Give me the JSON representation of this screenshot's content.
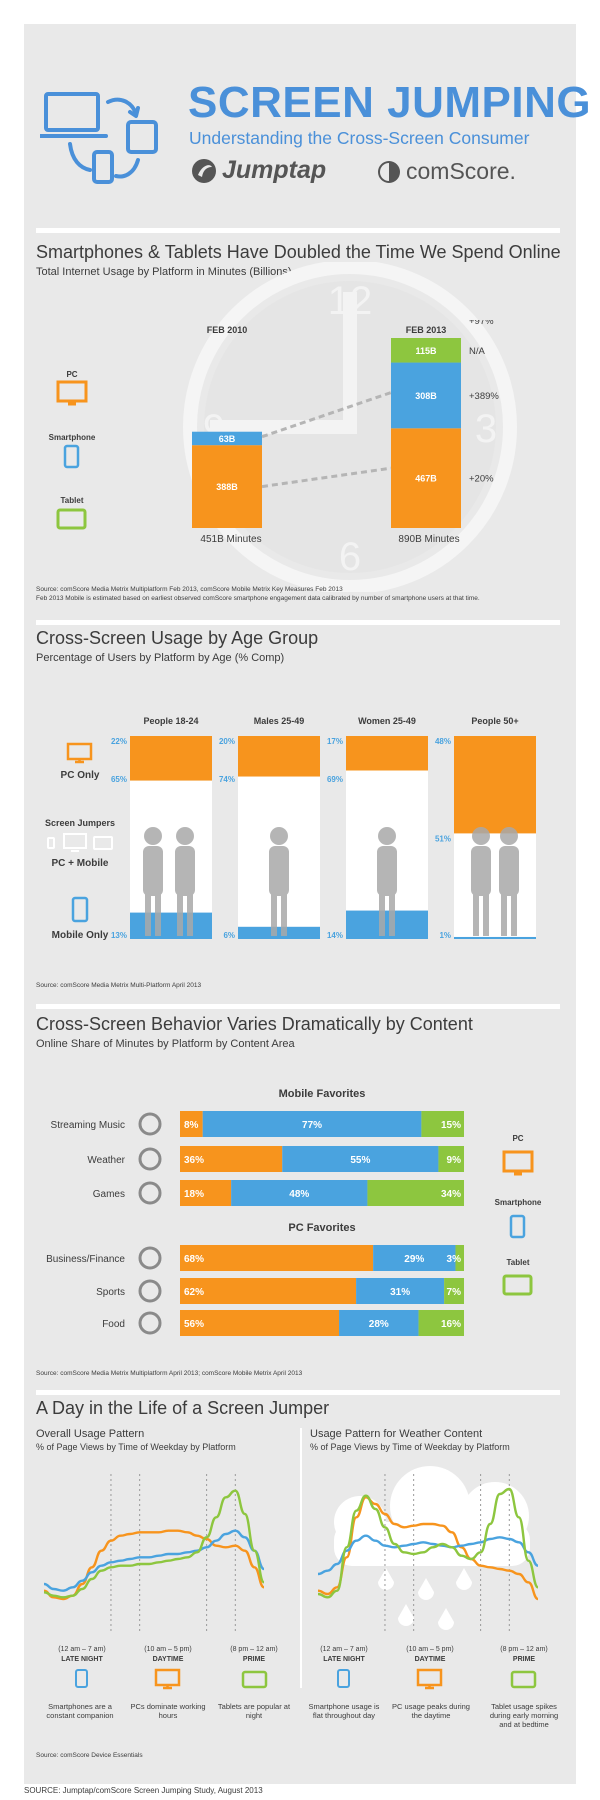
{
  "colors": {
    "pc": "#f7941d",
    "smartphone": "#4aa3df",
    "tablet": "#8dc63f",
    "blue": "#4a90d9",
    "gray": "#9a9a9a",
    "panel": "#e9e9e9"
  },
  "header": {
    "title": "SCREEN JUMPING",
    "subtitle": "Understanding the Cross-Screen Consumer",
    "logo1": "Jumptap",
    "logo2": "comScore."
  },
  "legend": {
    "pc": "PC",
    "smartphone": "Smartphone",
    "tablet": "Tablet"
  },
  "section1": {
    "title": "Smartphones & Tablets Have Doubled the Time We Spend Online",
    "subtitle": "Total Internet Usage by Platform in Minutes (Billions)",
    "col1": "FEB 2010",
    "col2": "FEB 2013",
    "total1": "451B Minutes",
    "total2": "890B Minutes",
    "source1": "Source:  comScore Media Metrix Multiplatform Feb 2013, comScore Mobile Metrix Key Measures Feb 2013",
    "source2": "Feb 2013 Mobile is estimated based on earliest observed comScore smartphone engagement data calibrated by number of smartphone users at that time."
  },
  "section2": {
    "title": "Cross-Screen Usage by Age Group",
    "subtitle": "Percentage of Users by Platform by Age (% Comp)",
    "label_pc_only": "PC Only",
    "label_jumpers": "Screen Jumpers",
    "label_pc_mobile": "PC + Mobile",
    "label_mobile_only": "Mobile Only",
    "source": "Source: comScore Media Metrix Multi-Platform April 2013"
  },
  "section3": {
    "title": "Cross-Screen Behavior Varies Dramatically by Content",
    "subtitle": "Online Share of Minutes by Platform by Content Area",
    "group1": "Mobile Favorites",
    "group2": "PC Favorites",
    "source": "Source: comScore Media Metrix Multiplatform April 2013; comScore Mobile Metrix April 2013"
  },
  "section4": {
    "title": "A Day in the Life of a Screen Jumper",
    "left_title": "Overall Usage Pattern",
    "left_sub": "% of Page Views by Time of Weekday by Platform",
    "right_title": "Usage Pattern for Weather Content",
    "right_sub": "% of Page Views by Time of Weekday by Platform",
    "source": "Source: comScore Device Essentials",
    "periods": [
      {
        "range": "(12 am – 7 am)",
        "name": "LATE NIGHT"
      },
      {
        "range": "(10 am – 5 pm)",
        "name": "DAYTIME"
      },
      {
        "range": "(8 pm – 12 am)",
        "name": "PRIME"
      }
    ],
    "left_notes": [
      "Smartphones are a constant companion",
      "PCs dominate working hours",
      "Tablets are popular at night"
    ],
    "right_notes": [
      "Smartphone usage is flat throughout day",
      "PC usage peaks during the daytime",
      "Tablet usage spikes during early morning and at bedtime"
    ]
  },
  "footer": {
    "source": "SOURCE: Jumptap/comScore Screen Jumping Study, August 2013"
  },
  "chart_data": [
    {
      "type": "bar",
      "title": "Total Internet Usage by Platform in Minutes (Billions)",
      "categories": [
        "FEB 2010",
        "FEB 2013"
      ],
      "series": [
        {
          "name": "PC",
          "values": [
            388,
            467
          ],
          "labels": [
            "388B",
            "467B"
          ]
        },
        {
          "name": "Smartphone",
          "values": [
            63,
            308
          ],
          "labels": [
            "63B",
            "308B"
          ]
        },
        {
          "name": "Tablet",
          "values": [
            0,
            115
          ],
          "labels": [
            "",
            "115B"
          ]
        }
      ],
      "growth": [
        "+97%",
        "N/A",
        "+389%",
        "+20%"
      ],
      "totals": [
        "451B Minutes",
        "890B Minutes"
      ],
      "ylim": [
        0,
        890
      ]
    },
    {
      "type": "bar",
      "title": "Percentage of Users by Platform by Age (% Comp)",
      "categories": [
        "People 18-24",
        "Males 25-49",
        "Women 25-49",
        "People  50+"
      ],
      "series": [
        {
          "name": "PC Only",
          "values": [
            22,
            20,
            17,
            48
          ],
          "labels": [
            "22%",
            "20%",
            "17%",
            "48%"
          ]
        },
        {
          "name": "PC + Mobile",
          "values": [
            65,
            74,
            69,
            51
          ],
          "labels": [
            "65%",
            "74%",
            "69%",
            "51%"
          ]
        },
        {
          "name": "Mobile Only",
          "values": [
            13,
            6,
            14,
            1
          ],
          "labels": [
            "13%",
            "6%",
            "14%",
            "1%"
          ]
        }
      ],
      "ylim": [
        0,
        100
      ]
    },
    {
      "type": "bar",
      "title": "Online Share of Minutes by Platform by Content Area",
      "categories": [
        "Streaming Music",
        "Weather",
        "Games",
        "Business/Finance",
        "Sports",
        "Food"
      ],
      "series": [
        {
          "name": "PC",
          "values": [
            8,
            36,
            18,
            68,
            62,
            56
          ],
          "labels": [
            "8%",
            "36%",
            "18%",
            "68%",
            "62%",
            "56%"
          ]
        },
        {
          "name": "Smartphone",
          "values": [
            77,
            55,
            48,
            29,
            31,
            28
          ],
          "labels": [
            "77%",
            "55%",
            "48%",
            "29%",
            "31%",
            "28%"
          ]
        },
        {
          "name": "Tablet",
          "values": [
            15,
            9,
            34,
            3,
            7,
            16
          ],
          "labels": [
            "15%",
            "9%",
            "34%",
            "3%",
            "7%",
            "16%"
          ]
        }
      ],
      "xlim": [
        0,
        100
      ]
    },
    {
      "type": "line",
      "title": "Overall Usage Pattern",
      "x": [
        0,
        1,
        2,
        3,
        4,
        5,
        6,
        7,
        8,
        9,
        10,
        11,
        12,
        13,
        14,
        15,
        16,
        17,
        18,
        19,
        20,
        21,
        22,
        23
      ],
      "series": [
        {
          "name": "PC",
          "values": [
            2.0,
            1.6,
            1.5,
            1.7,
            2.4,
            3.4,
            4.4,
            5.0,
            5.3,
            5.4,
            5.5,
            5.5,
            5.5,
            5.6,
            5.6,
            5.5,
            5.3,
            5.1,
            4.7,
            4.6,
            4.7,
            4.4,
            3.4,
            2.2
          ]
        },
        {
          "name": "Smartphone",
          "values": [
            2.4,
            2.1,
            2.0,
            2.2,
            2.6,
            3.1,
            3.5,
            3.7,
            3.8,
            3.9,
            4.0,
            4.0,
            4.1,
            4.2,
            4.2,
            4.3,
            4.4,
            4.6,
            5.0,
            5.4,
            5.6,
            5.2,
            4.4,
            3.3
          ]
        },
        {
          "name": "Tablet",
          "values": [
            1.9,
            1.7,
            1.6,
            1.7,
            2.1,
            2.7,
            3.2,
            3.4,
            3.5,
            3.5,
            3.6,
            3.6,
            3.7,
            3.8,
            3.9,
            4.0,
            4.3,
            5.2,
            6.4,
            7.6,
            8.0,
            6.6,
            4.4,
            2.5
          ]
        }
      ]
    },
    {
      "type": "line",
      "title": "Usage Pattern for Weather Content",
      "x": [
        0,
        1,
        2,
        3,
        4,
        5,
        6,
        7,
        8,
        9,
        10,
        11,
        12,
        13,
        14,
        15,
        16,
        17,
        18,
        19,
        20,
        21,
        22,
        23
      ],
      "series": [
        {
          "name": "PC",
          "values": [
            2.0,
            1.8,
            2.2,
            4.0,
            6.4,
            7.6,
            7.2,
            6.6,
            6.0,
            5.8,
            5.9,
            6.0,
            6.0,
            5.9,
            5.5,
            4.6,
            3.9,
            3.5,
            3.4,
            3.3,
            3.2,
            3.0,
            2.5,
            1.5
          ]
        },
        {
          "name": "Smartphone",
          "values": [
            3.0,
            3.2,
            3.6,
            4.4,
            5.0,
            5.3,
            5.0,
            4.7,
            4.6,
            4.7,
            4.8,
            4.9,
            4.8,
            4.7,
            4.6,
            4.7,
            4.8,
            4.9,
            5.1,
            5.2,
            5.1,
            4.9,
            4.3,
            3.5
          ]
        },
        {
          "name": "Tablet",
          "values": [
            1.8,
            1.6,
            2.0,
            4.6,
            6.8,
            7.7,
            6.9,
            5.8,
            4.8,
            4.3,
            4.2,
            4.3,
            4.6,
            4.8,
            4.6,
            4.1,
            3.9,
            4.3,
            6.0,
            7.8,
            8.1,
            6.4,
            3.8,
            2.2
          ]
        }
      ]
    }
  ]
}
